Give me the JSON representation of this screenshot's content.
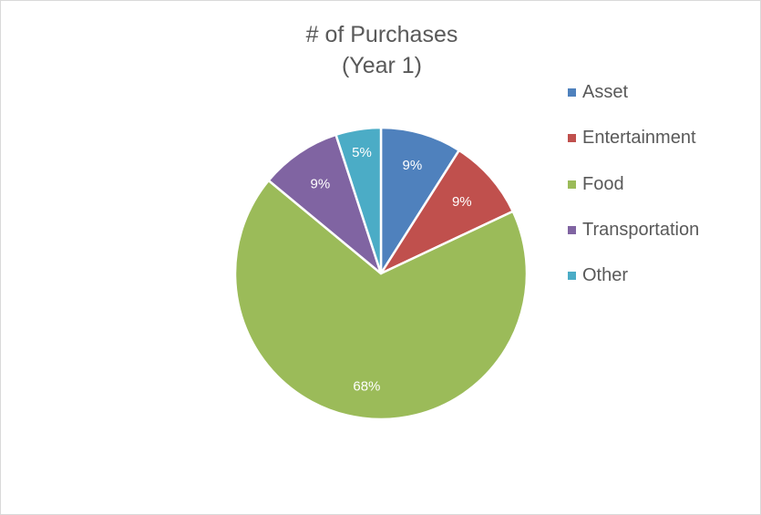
{
  "chart_data": {
    "type": "pie",
    "title": "# of Purchases",
    "subtitle": "(Year 1)",
    "categories": [
      "Asset",
      "Entertainment",
      "Food",
      "Transportation",
      "Other"
    ],
    "values": [
      9,
      9,
      68,
      9,
      5
    ],
    "data_labels": [
      "9%",
      "9%",
      "68%",
      "9%",
      "5%"
    ],
    "colors": [
      "#4f81bd",
      "#c0504d",
      "#9bbb59",
      "#8064a2",
      "#4bacc6"
    ],
    "legend_position": "right"
  }
}
